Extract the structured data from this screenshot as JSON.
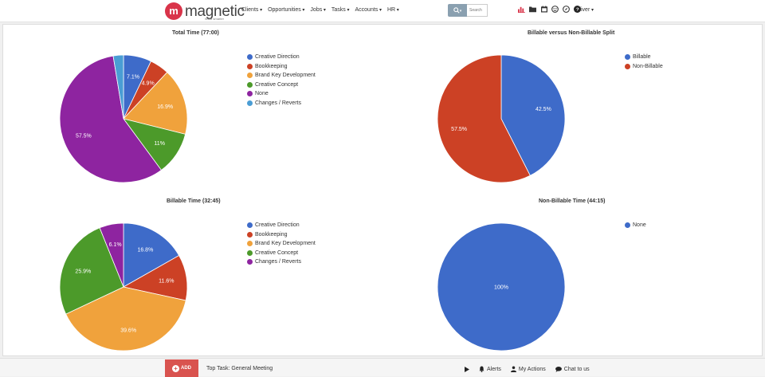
{
  "header": {
    "logo_text": "magnetic",
    "logo_mark": "m",
    "logo_tagline": "Work smarter",
    "nav": [
      "Clients",
      "Opportunities",
      "Jobs",
      "Tasks",
      "Accounts",
      "HR"
    ],
    "search_placeholder": "Search",
    "user": "Oliver",
    "icons": [
      "bar-chart-icon",
      "folder-icon",
      "calendar-icon",
      "smiley-icon",
      "compass-icon",
      "help-icon"
    ]
  },
  "chart_data": [
    {
      "type": "pie",
      "title": "Total Time (77:00)",
      "series": [
        {
          "name": "Creative Direction",
          "value": 7.1,
          "label": "7.1%",
          "color": "#3e6bc9"
        },
        {
          "name": "Bookkeeping",
          "value": 4.9,
          "label": "4.9%",
          "color": "#cc4125"
        },
        {
          "name": "Brand Key Development",
          "value": 16.9,
          "label": "16.9%",
          "color": "#f0a23c"
        },
        {
          "name": "Creative Concept",
          "value": 11.0,
          "label": "11%",
          "color": "#4c9a2a"
        },
        {
          "name": "None",
          "value": 57.5,
          "label": "57.5%",
          "color": "#8e24a0"
        },
        {
          "name": "Changes / Reverts",
          "value": 2.6,
          "label": "",
          "color": "#4a9dd4"
        }
      ]
    },
    {
      "type": "pie",
      "title": "Billable versus Non-Billable Split",
      "series": [
        {
          "name": "Billable",
          "value": 42.5,
          "label": "42.5%",
          "color": "#3e6bc9"
        },
        {
          "name": "Non-Billable",
          "value": 57.5,
          "label": "57.5%",
          "color": "#cc4125"
        }
      ]
    },
    {
      "type": "pie",
      "title": "Billable Time (32:45)",
      "series": [
        {
          "name": "Creative Direction",
          "value": 16.8,
          "label": "16.8%",
          "color": "#3e6bc9"
        },
        {
          "name": "Bookkeeping",
          "value": 11.6,
          "label": "11.6%",
          "color": "#cc4125"
        },
        {
          "name": "Brand Key Development",
          "value": 39.6,
          "label": "39.6%",
          "color": "#f0a23c"
        },
        {
          "name": "Creative Concept",
          "value": 25.9,
          "label": "25.9%",
          "color": "#4c9a2a"
        },
        {
          "name": "Changes / Reverts",
          "value": 6.1,
          "label": "6.1%",
          "color": "#8e24a0"
        }
      ]
    },
    {
      "type": "pie",
      "title": "Non-Billable Time (44:15)",
      "series": [
        {
          "name": "None",
          "value": 100,
          "label": "100%",
          "color": "#3e6bc9"
        }
      ]
    }
  ],
  "footer": {
    "add_label": "ADD",
    "top_task": "Top Task: General Meeting",
    "alerts": "Alerts",
    "my_actions": "My Actions",
    "chat": "Chat to us"
  }
}
